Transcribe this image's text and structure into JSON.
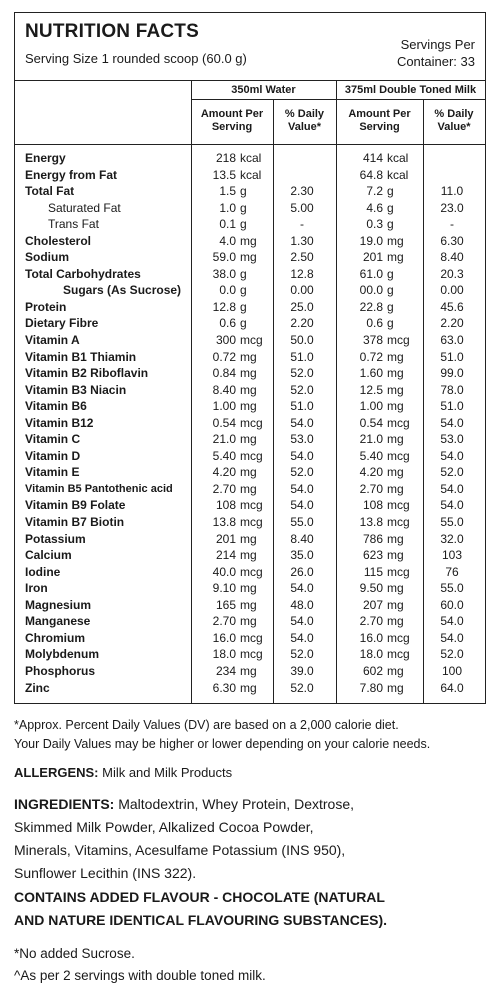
{
  "header": {
    "title": "NUTRITION FACTS",
    "serving_size": "Serving Size 1 rounded scoop (60.0 g)",
    "servings_line1": "Servings Per",
    "servings_line2": "Container: 33"
  },
  "columns": {
    "group1": "350ml Water",
    "group2": "375ml Double Toned Milk",
    "amount_per_serving_l1": "Amount Per",
    "amount_per_serving_l2": "Serving",
    "daily_value_l1": "% Daily",
    "daily_value_l2": "Value*"
  },
  "rows": [
    {
      "label": "Energy",
      "style": "bold",
      "a1": "218",
      "u1": "kcal",
      "d1": "",
      "a2": "414",
      "u2": "kcal",
      "d2": ""
    },
    {
      "label": "Energy from Fat",
      "style": "bold",
      "a1": "13.5",
      "u1": "kcal",
      "d1": "",
      "a2": "64.8",
      "u2": "kcal",
      "d2": ""
    },
    {
      "label": "Total Fat",
      "style": "bold",
      "a1": "1.5",
      "u1": "g",
      "d1": "2.30",
      "a2": "7.2",
      "u2": "g",
      "d2": "11.0"
    },
    {
      "label": "Saturated Fat",
      "style": "sub",
      "a1": "1.0",
      "u1": "g",
      "d1": "5.00",
      "a2": "4.6",
      "u2": "g",
      "d2": "23.0"
    },
    {
      "label": "Trans Fat",
      "style": "sub",
      "a1": "0.1",
      "u1": "g",
      "d1": "-",
      "a2": "0.3",
      "u2": "g",
      "d2": "-"
    },
    {
      "label": "Cholesterol",
      "style": "bold",
      "a1": "4.0",
      "u1": "mg",
      "d1": "1.30",
      "a2": "19.0",
      "u2": "mg",
      "d2": "6.30"
    },
    {
      "label": "Sodium",
      "style": "bold",
      "a1": "59.0",
      "u1": "mg",
      "d1": "2.50",
      "a2": "201",
      "u2": "mg",
      "d2": "8.40"
    },
    {
      "label": "Total Carbohydrates",
      "style": "bold",
      "a1": "38.0",
      "u1": "g",
      "d1": "12.8",
      "a2": "61.0",
      "u2": "g",
      "d2": "20.3"
    },
    {
      "label": "Sugars (As Sucrose)",
      "style": "subbold",
      "a1": "0.0",
      "u1": "g",
      "d1": "0.00",
      "a2": "00.0",
      "u2": "g",
      "d2": "0.00"
    },
    {
      "label": "Protein",
      "style": "bold",
      "a1": "12.8",
      "u1": "g",
      "d1": "25.0",
      "a2": "22.8",
      "u2": "g",
      "d2": "45.6"
    },
    {
      "label": "Dietary Fibre",
      "style": "bold",
      "a1": "0.6",
      "u1": "g",
      "d1": "2.20",
      "a2": "0.6",
      "u2": "g",
      "d2": "2.20"
    },
    {
      "label": "Vitamin A",
      "style": "bold",
      "a1": "300",
      "u1": "mcg",
      "d1": "50.0",
      "a2": "378",
      "u2": "mcg",
      "d2": "63.0"
    },
    {
      "label": "Vitamin B1 Thiamin",
      "style": "bold",
      "a1": "0.72",
      "u1": "mg",
      "d1": "51.0",
      "a2": "0.72",
      "u2": "mg",
      "d2": "51.0"
    },
    {
      "label": "Vitamin B2 Riboflavin",
      "style": "bold",
      "a1": "0.84",
      "u1": "mg",
      "d1": "52.0",
      "a2": "1.60",
      "u2": "mg",
      "d2": "99.0"
    },
    {
      "label": "Vitamin B3 Niacin",
      "style": "bold",
      "a1": "8.40",
      "u1": "mg",
      "d1": "52.0",
      "a2": "12.5",
      "u2": "mg",
      "d2": "78.0"
    },
    {
      "label": "Vitamin B6",
      "style": "bold",
      "a1": "1.00",
      "u1": "mg",
      "d1": "51.0",
      "a2": "1.00",
      "u2": "mg",
      "d2": "51.0"
    },
    {
      "label": "Vitamin B12",
      "style": "bold",
      "a1": "0.54",
      "u1": "mcg",
      "d1": "54.0",
      "a2": "0.54",
      "u2": "mcg",
      "d2": "54.0"
    },
    {
      "label": "Vitamin C",
      "style": "bold",
      "a1": "21.0",
      "u1": "mg",
      "d1": "53.0",
      "a2": "21.0",
      "u2": "mg",
      "d2": "53.0"
    },
    {
      "label": "Vitamin D",
      "style": "bold",
      "a1": "5.40",
      "u1": "mcg",
      "d1": "54.0",
      "a2": "5.40",
      "u2": "mcg",
      "d2": "54.0"
    },
    {
      "label": "Vitamin E",
      "style": "bold",
      "a1": "4.20",
      "u1": "mg",
      "d1": "52.0",
      "a2": "4.20",
      "u2": "mg",
      "d2": "52.0"
    },
    {
      "label": "Vitamin B5 Pantothenic acid",
      "style": "boldsmall",
      "a1": "2.70",
      "u1": "mg",
      "d1": "54.0",
      "a2": "2.70",
      "u2": "mg",
      "d2": "54.0"
    },
    {
      "label": "Vitamin B9 Folate",
      "style": "bold",
      "a1": "108",
      "u1": "mcg",
      "d1": "54.0",
      "a2": "108",
      "u2": "mcg",
      "d2": "54.0"
    },
    {
      "label": "Vitamin B7 Biotin",
      "style": "bold",
      "a1": "13.8",
      "u1": "mcg",
      "d1": "55.0",
      "a2": "13.8",
      "u2": "mcg",
      "d2": "55.0"
    },
    {
      "label": "Potassium",
      "style": "bold",
      "a1": "201",
      "u1": "mg",
      "d1": "8.40",
      "a2": "786",
      "u2": "mg",
      "d2": "32.0"
    },
    {
      "label": "Calcium",
      "style": "bold",
      "a1": "214",
      "u1": "mg",
      "d1": "35.0",
      "a2": "623",
      "u2": "mg",
      "d2": "103"
    },
    {
      "label": "Iodine",
      "style": "bold",
      "a1": "40.0",
      "u1": "mcg",
      "d1": "26.0",
      "a2": "115",
      "u2": "mcg",
      "d2": "76"
    },
    {
      "label": "Iron",
      "style": "bold",
      "a1": "9.10",
      "u1": "mg",
      "d1": "54.0",
      "a2": "9.50",
      "u2": "mg",
      "d2": "55.0"
    },
    {
      "label": "Magnesium",
      "style": "bold",
      "a1": "165",
      "u1": "mg",
      "d1": "48.0",
      "a2": "207",
      "u2": "mg",
      "d2": "60.0"
    },
    {
      "label": "Manganese",
      "style": "bold",
      "a1": "2.70",
      "u1": "mg",
      "d1": "54.0",
      "a2": "2.70",
      "u2": "mg",
      "d2": "54.0"
    },
    {
      "label": "Chromium",
      "style": "bold",
      "a1": "16.0",
      "u1": "mcg",
      "d1": "54.0",
      "a2": "16.0",
      "u2": "mcg",
      "d2": "54.0"
    },
    {
      "label": "Molybdenum",
      "style": "bold",
      "a1": "18.0",
      "u1": "mcg",
      "d1": "52.0",
      "a2": "18.0",
      "u2": "mcg",
      "d2": "52.0"
    },
    {
      "label": "Phosphorus",
      "style": "bold",
      "a1": "234",
      "u1": "mg",
      "d1": "39.0",
      "a2": "602",
      "u2": "mg",
      "d2": "100"
    },
    {
      "label": "Zinc",
      "style": "bold",
      "a1": "6.30",
      "u1": "mg",
      "d1": "52.0",
      "a2": "7.80",
      "u2": "mg",
      "d2": "64.0"
    }
  ],
  "footnote_l1": "*Approx. Percent Daily Values (DV) are based on a 2,000 calorie diet.",
  "footnote_l2": "Your Daily Values may be higher or lower depending on your calorie needs.",
  "allergens_label": "ALLERGENS:",
  "allergens_text": " Milk and Milk Products",
  "ingredients_label": "INGREDIENTS:",
  "ingredients_l1": " Maltodextrin, Whey Protein, Dextrose,",
  "ingredients_l2": "Skimmed Milk Powder, Alkalized Cocoa Powder,",
  "ingredients_l3": "Minerals, Vitamins, Acesulfame Potassium (INS 950),",
  "ingredients_l4": "Sunflower Lecithin (INS 322).",
  "flavour_l1": "CONTAINS ADDED FLAVOUR - CHOCOLATE (NATURAL",
  "flavour_l2": "AND NATURE IDENTICAL FLAVOURING SUBSTANCES).",
  "note1": "*No added Sucrose.",
  "note2": "^As per 2 servings with double toned milk."
}
